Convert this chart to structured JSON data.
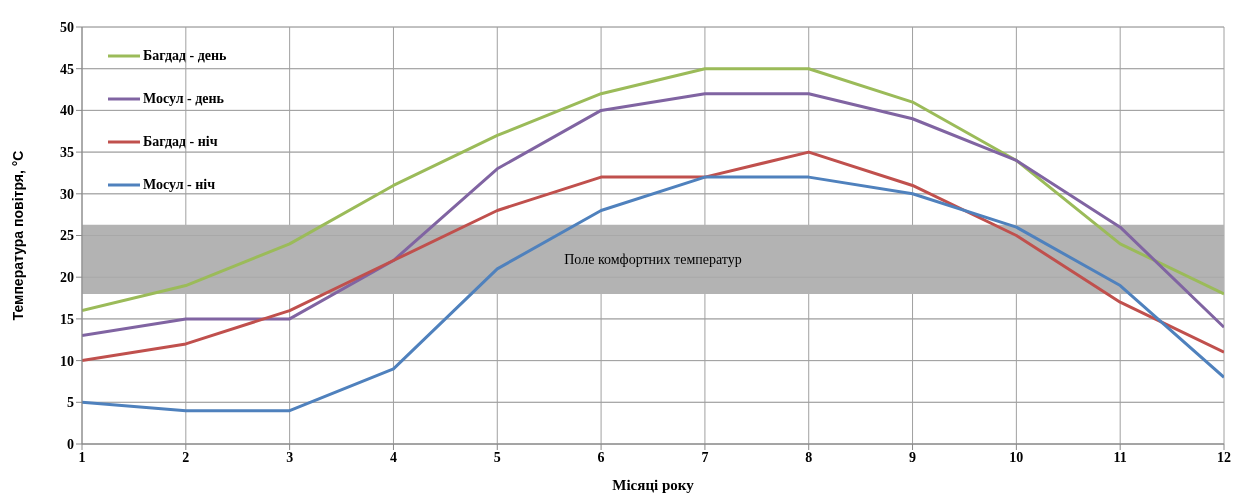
{
  "chart_data": {
    "type": "line",
    "xlabel": "Місяці року",
    "ylabel": "Температура повітря, °C",
    "x": [
      1,
      2,
      3,
      4,
      5,
      6,
      7,
      8,
      9,
      10,
      11,
      12
    ],
    "xlim": [
      1,
      12
    ],
    "xticks": [
      1,
      2,
      3,
      4,
      5,
      6,
      7,
      8,
      9,
      10,
      11,
      12
    ],
    "ylim": [
      0,
      50
    ],
    "yticks": [
      0,
      5,
      10,
      15,
      20,
      25,
      30,
      35,
      40,
      45,
      50
    ],
    "grid": true,
    "legend": "top left",
    "marker": "none",
    "line_style": "solid",
    "bands": [
      {
        "axis": "y",
        "from": 18,
        "to": 26.3,
        "label": "Поле комфортних температур",
        "color": "#b3b3b3"
      }
    ],
    "series": [
      {
        "name": "Багдад - день",
        "color": "#9bbb59",
        "values": [
          16,
          19,
          24,
          31,
          37,
          42,
          45,
          45,
          41,
          34,
          24,
          18
        ]
      },
      {
        "name": "Мосул - день",
        "color": "#8064a2",
        "values": [
          13,
          15,
          15,
          22,
          33,
          40,
          42,
          42,
          39,
          34,
          26,
          14
        ]
      },
      {
        "name": "Багдад - ніч",
        "color": "#c0504d",
        "values": [
          10,
          12,
          16,
          22,
          28,
          32,
          32,
          35,
          31,
          25,
          17,
          11
        ]
      },
      {
        "name": "Мосул - ніч",
        "color": "#4f81bd",
        "values": [
          5,
          4,
          4,
          9,
          21,
          28,
          32,
          32,
          30,
          26,
          19,
          8
        ]
      }
    ]
  }
}
